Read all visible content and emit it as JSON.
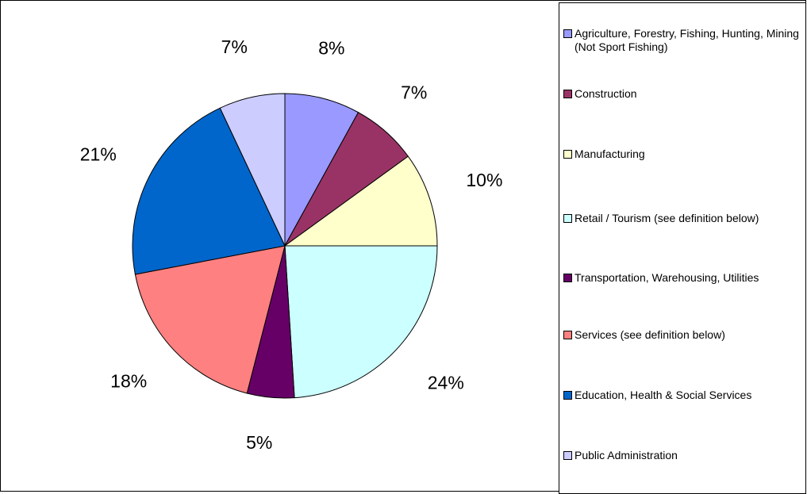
{
  "chart_data": {
    "type": "pie",
    "title": "",
    "legend_position": "right",
    "start_angle_deg": 0,
    "direction": "clockwise",
    "slices": [
      {
        "label": "Agriculture, Forestry, Fishing, Hunting, Mining (Not Sport Fishing)",
        "value": 8,
        "display": "8%",
        "color": "#9999FF"
      },
      {
        "label": "Construction",
        "value": 7,
        "display": "7%",
        "color": "#993366"
      },
      {
        "label": "Manufacturing",
        "value": 10,
        "display": "10%",
        "color": "#FFFFCC"
      },
      {
        "label": "Retail / Tourism (see definition below)",
        "value": 24,
        "display": "24%",
        "color": "#CCFFFF"
      },
      {
        "label": "Transportation, Warehousing, Utilities",
        "value": 5,
        "display": "5%",
        "color": "#660066"
      },
      {
        "label": "Services (see definition below)",
        "value": 18,
        "display": "18%",
        "color": "#FF8080"
      },
      {
        "label": "Education, Health & Social Services",
        "value": 21,
        "display": "21%",
        "color": "#0066CC"
      },
      {
        "label": "Public Administration",
        "value": 7,
        "display": "7%",
        "color": "#CCCCFF"
      }
    ]
  }
}
